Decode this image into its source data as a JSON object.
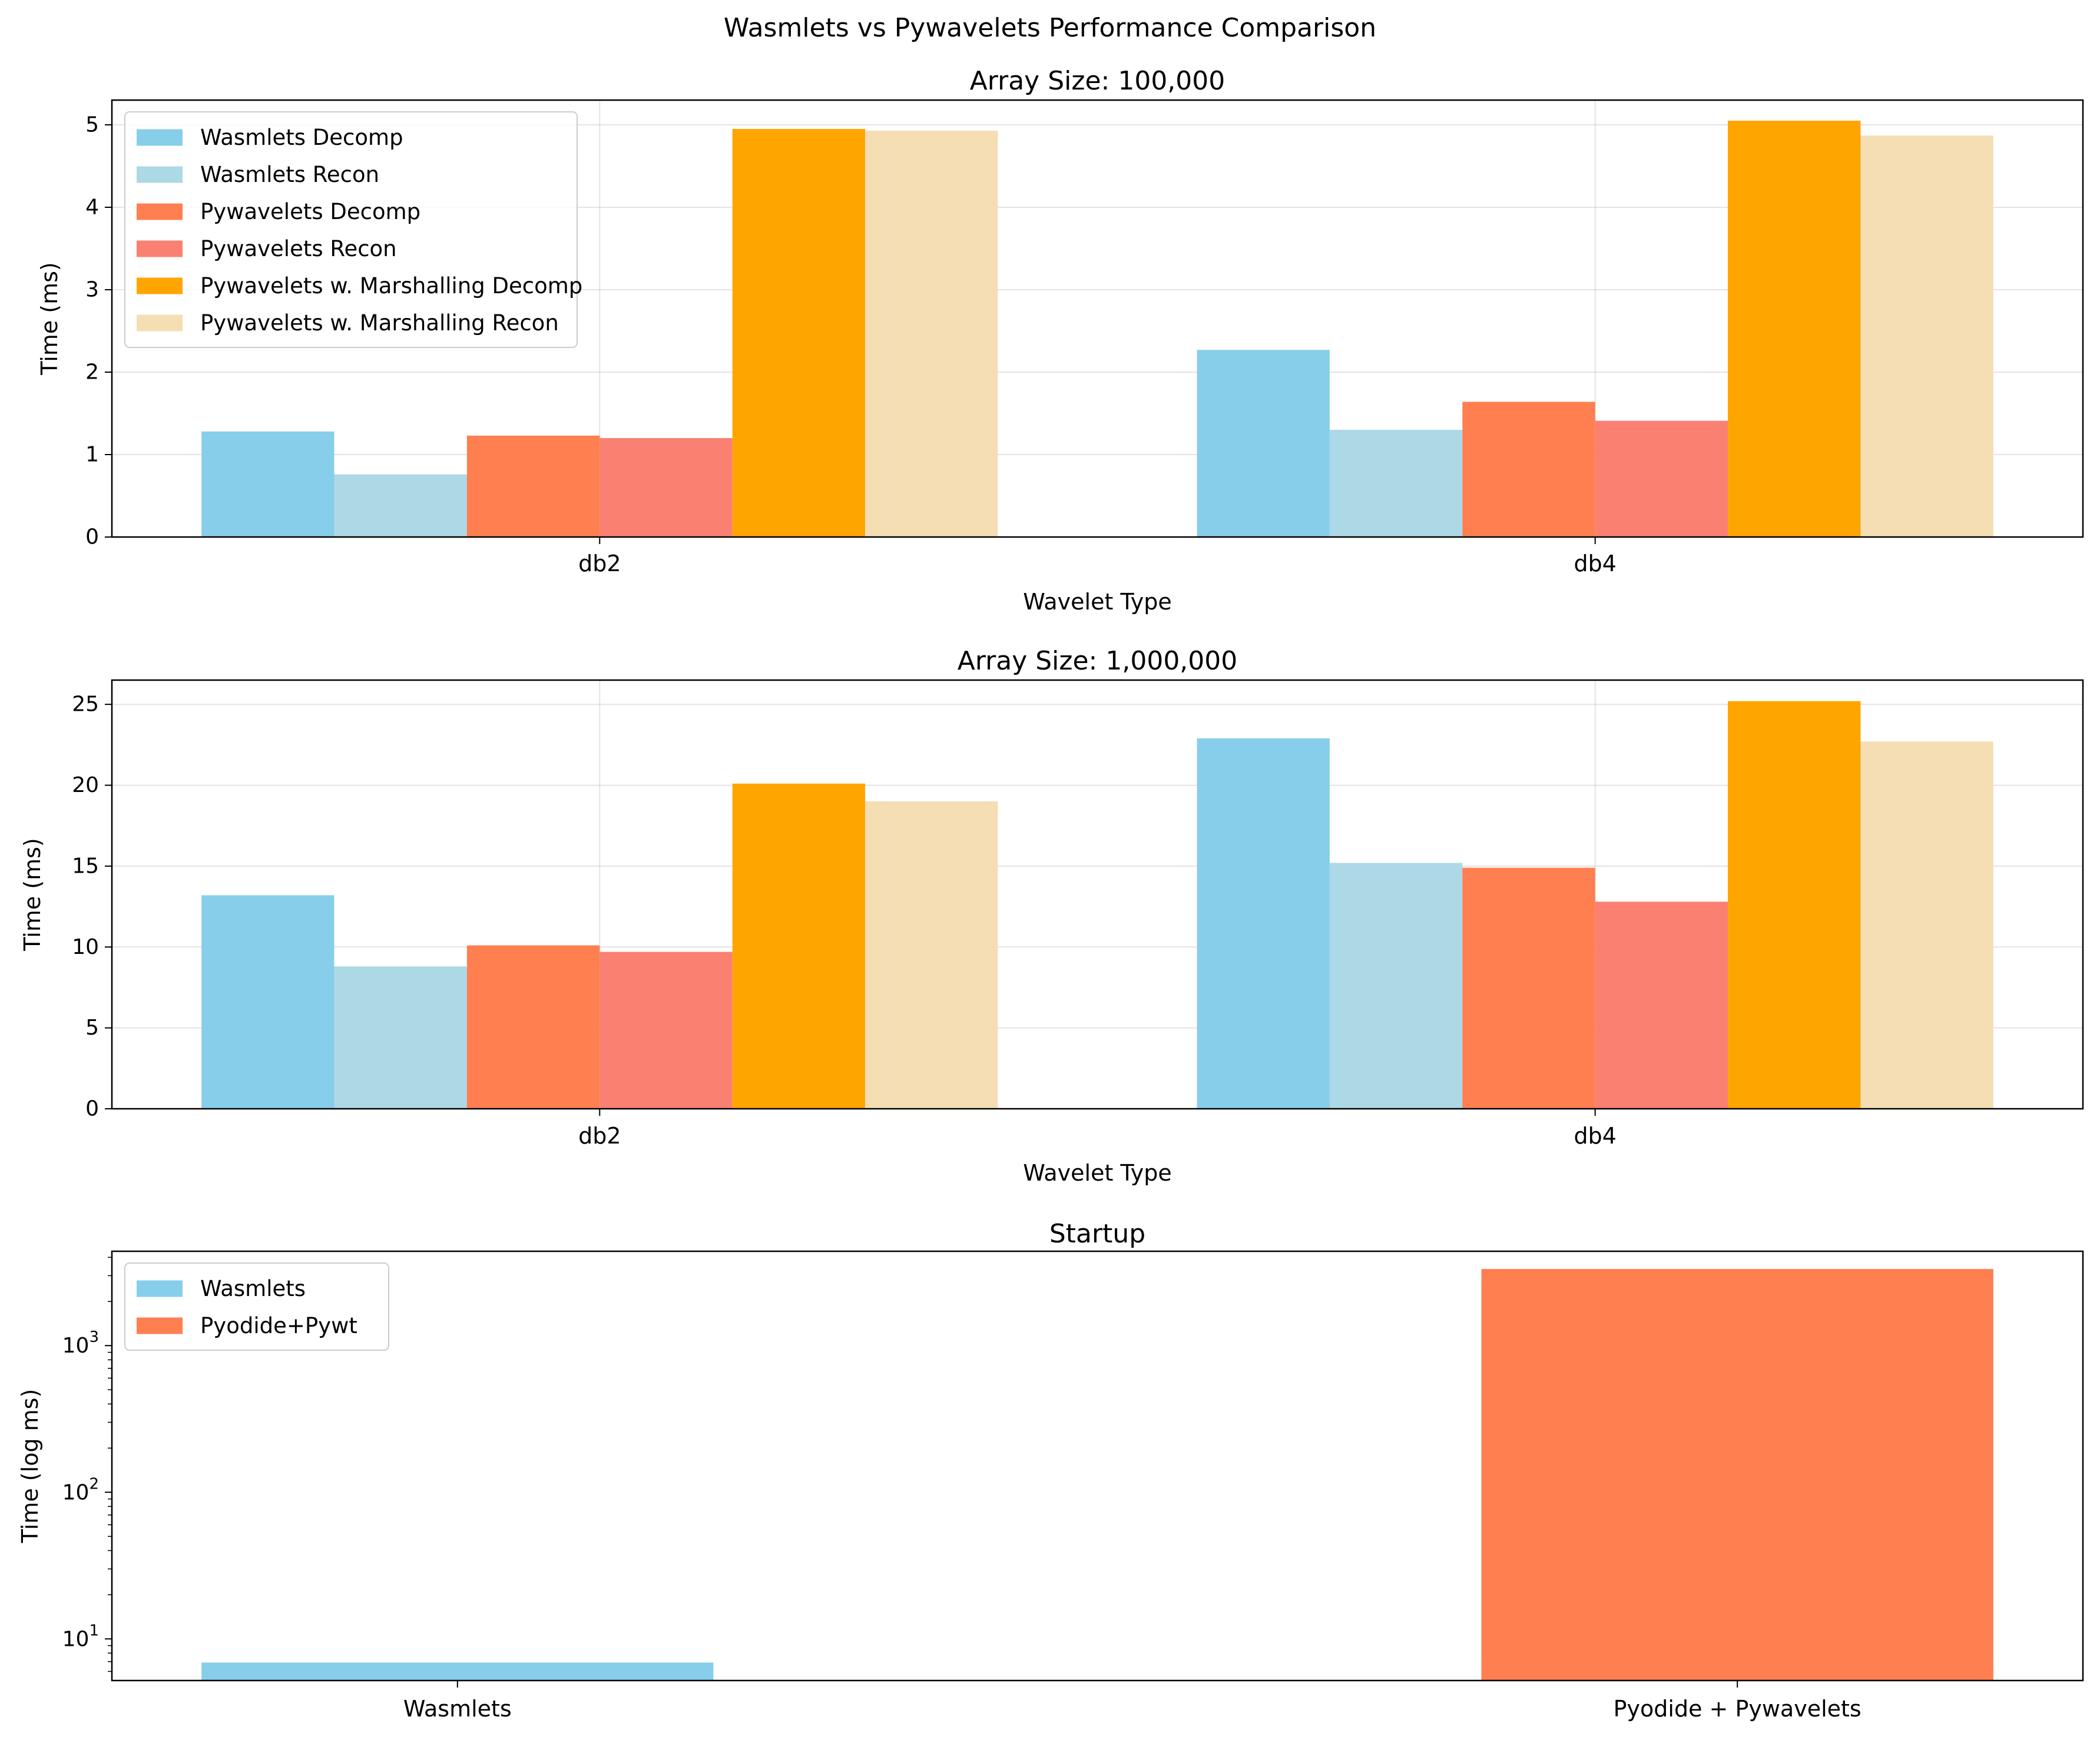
{
  "figure": {
    "suptitle": "Wasmlets vs Pywavelets Performance Comparison"
  },
  "chart_data": [
    {
      "type": "bar",
      "title": "Array Size: 100,000",
      "xlabel": "Wavelet Type",
      "ylabel": "Time (ms)",
      "categories": [
        "db2",
        "db4"
      ],
      "ylim": [
        0,
        5.3
      ],
      "yticks": [
        0,
        1,
        2,
        3,
        4,
        5
      ],
      "grid": true,
      "legend": "top-left",
      "series": [
        {
          "name": "Wasmlets Decomp",
          "color": "#87CEEB",
          "values": [
            1.28,
            2.27
          ]
        },
        {
          "name": "Wasmlets Recon",
          "color": "#ADD8E6",
          "values": [
            0.76,
            1.3
          ]
        },
        {
          "name": "Pywavelets Decomp",
          "color": "#FF7F50",
          "values": [
            1.23,
            1.64
          ]
        },
        {
          "name": "Pywavelets Recon",
          "color": "#FA8072",
          "values": [
            1.2,
            1.41
          ]
        },
        {
          "name": "Pywavelets w. Marshalling Decomp",
          "color": "#FFA500",
          "values": [
            4.95,
            5.05
          ]
        },
        {
          "name": "Pywavelets w. Marshalling Recon",
          "color": "#F5DEB3",
          "values": [
            4.93,
            4.87
          ]
        }
      ]
    },
    {
      "type": "bar",
      "title": "Array Size: 1,000,000",
      "xlabel": "Wavelet Type",
      "ylabel": "Time (ms)",
      "categories": [
        "db2",
        "db4"
      ],
      "ylim": [
        0,
        26.5
      ],
      "yticks": [
        0,
        5,
        10,
        15,
        20,
        25
      ],
      "grid": true,
      "legend": "none",
      "series": [
        {
          "name": "Wasmlets Decomp",
          "color": "#87CEEB",
          "values": [
            13.2,
            22.9
          ]
        },
        {
          "name": "Wasmlets Recon",
          "color": "#ADD8E6",
          "values": [
            8.8,
            15.2
          ]
        },
        {
          "name": "Pywavelets Decomp",
          "color": "#FF7F50",
          "values": [
            10.1,
            14.9
          ]
        },
        {
          "name": "Pywavelets Recon",
          "color": "#FA8072",
          "values": [
            9.7,
            12.8
          ]
        },
        {
          "name": "Pywavelets w. Marshalling Decomp",
          "color": "#FFA500",
          "values": [
            20.1,
            25.2
          ]
        },
        {
          "name": "Pywavelets w. Marshalling Recon",
          "color": "#F5DEB3",
          "values": [
            19.0,
            22.7
          ]
        }
      ]
    },
    {
      "type": "bar",
      "title": "Startup",
      "ylabel": "Time (log ms)",
      "categories": [
        "Wasmlets",
        "Pyodide + Pywavelets"
      ],
      "yscale": "log",
      "ylim": [
        5.2,
        4400
      ],
      "grid": false,
      "legend": "top-left",
      "series": [
        {
          "name": "Wasmlets",
          "color": "#87CEEB",
          "values": [
            6.9,
            null
          ]
        },
        {
          "name": "Pyodide+Pywt",
          "color": "#FF7F50",
          "values": [
            null,
            3330
          ]
        }
      ]
    }
  ]
}
